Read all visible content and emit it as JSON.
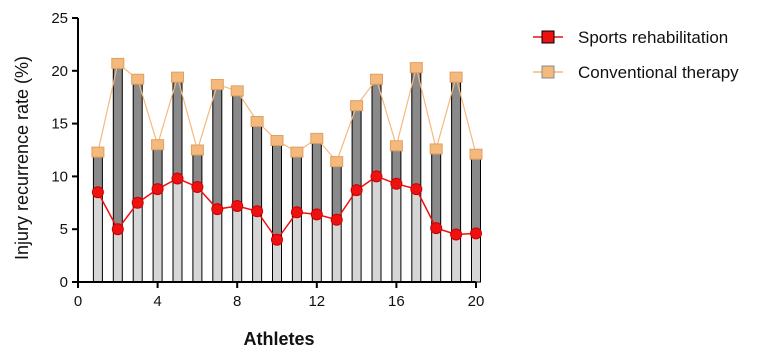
{
  "chart_data": {
    "type": "bar",
    "xlabel": "Athletes",
    "ylabel": "Injury recurrence rate (%)",
    "xlim": [
      0,
      20
    ],
    "ylim": [
      0,
      25
    ],
    "x_ticks": [
      0,
      4,
      8,
      12,
      16,
      20
    ],
    "y_ticks": [
      0,
      5,
      10,
      15,
      20,
      25
    ],
    "grid": false,
    "legend_position": "top-right",
    "x": [
      1,
      2,
      3,
      4,
      5,
      6,
      7,
      8,
      9,
      10,
      11,
      12,
      13,
      14,
      15,
      16,
      17,
      18,
      19,
      20
    ],
    "series": [
      {
        "name": "Sports rehabilitation",
        "color": "#ee1111",
        "marker": "square",
        "values": [
          8.5,
          5.0,
          7.5,
          8.8,
          9.8,
          9.0,
          6.9,
          7.2,
          6.7,
          4.0,
          6.6,
          6.4,
          5.9,
          8.7,
          10.0,
          9.3,
          8.8,
          5.1,
          4.5,
          4.6
        ]
      },
      {
        "name": "Conventional therapy",
        "color": "#f4b97d",
        "marker": "square",
        "values": [
          12.3,
          20.7,
          19.2,
          13.0,
          19.4,
          12.5,
          18.7,
          18.1,
          15.2,
          13.4,
          12.3,
          13.6,
          11.4,
          16.7,
          19.2,
          12.9,
          20.3,
          12.6,
          19.4,
          12.1
        ]
      }
    ]
  }
}
